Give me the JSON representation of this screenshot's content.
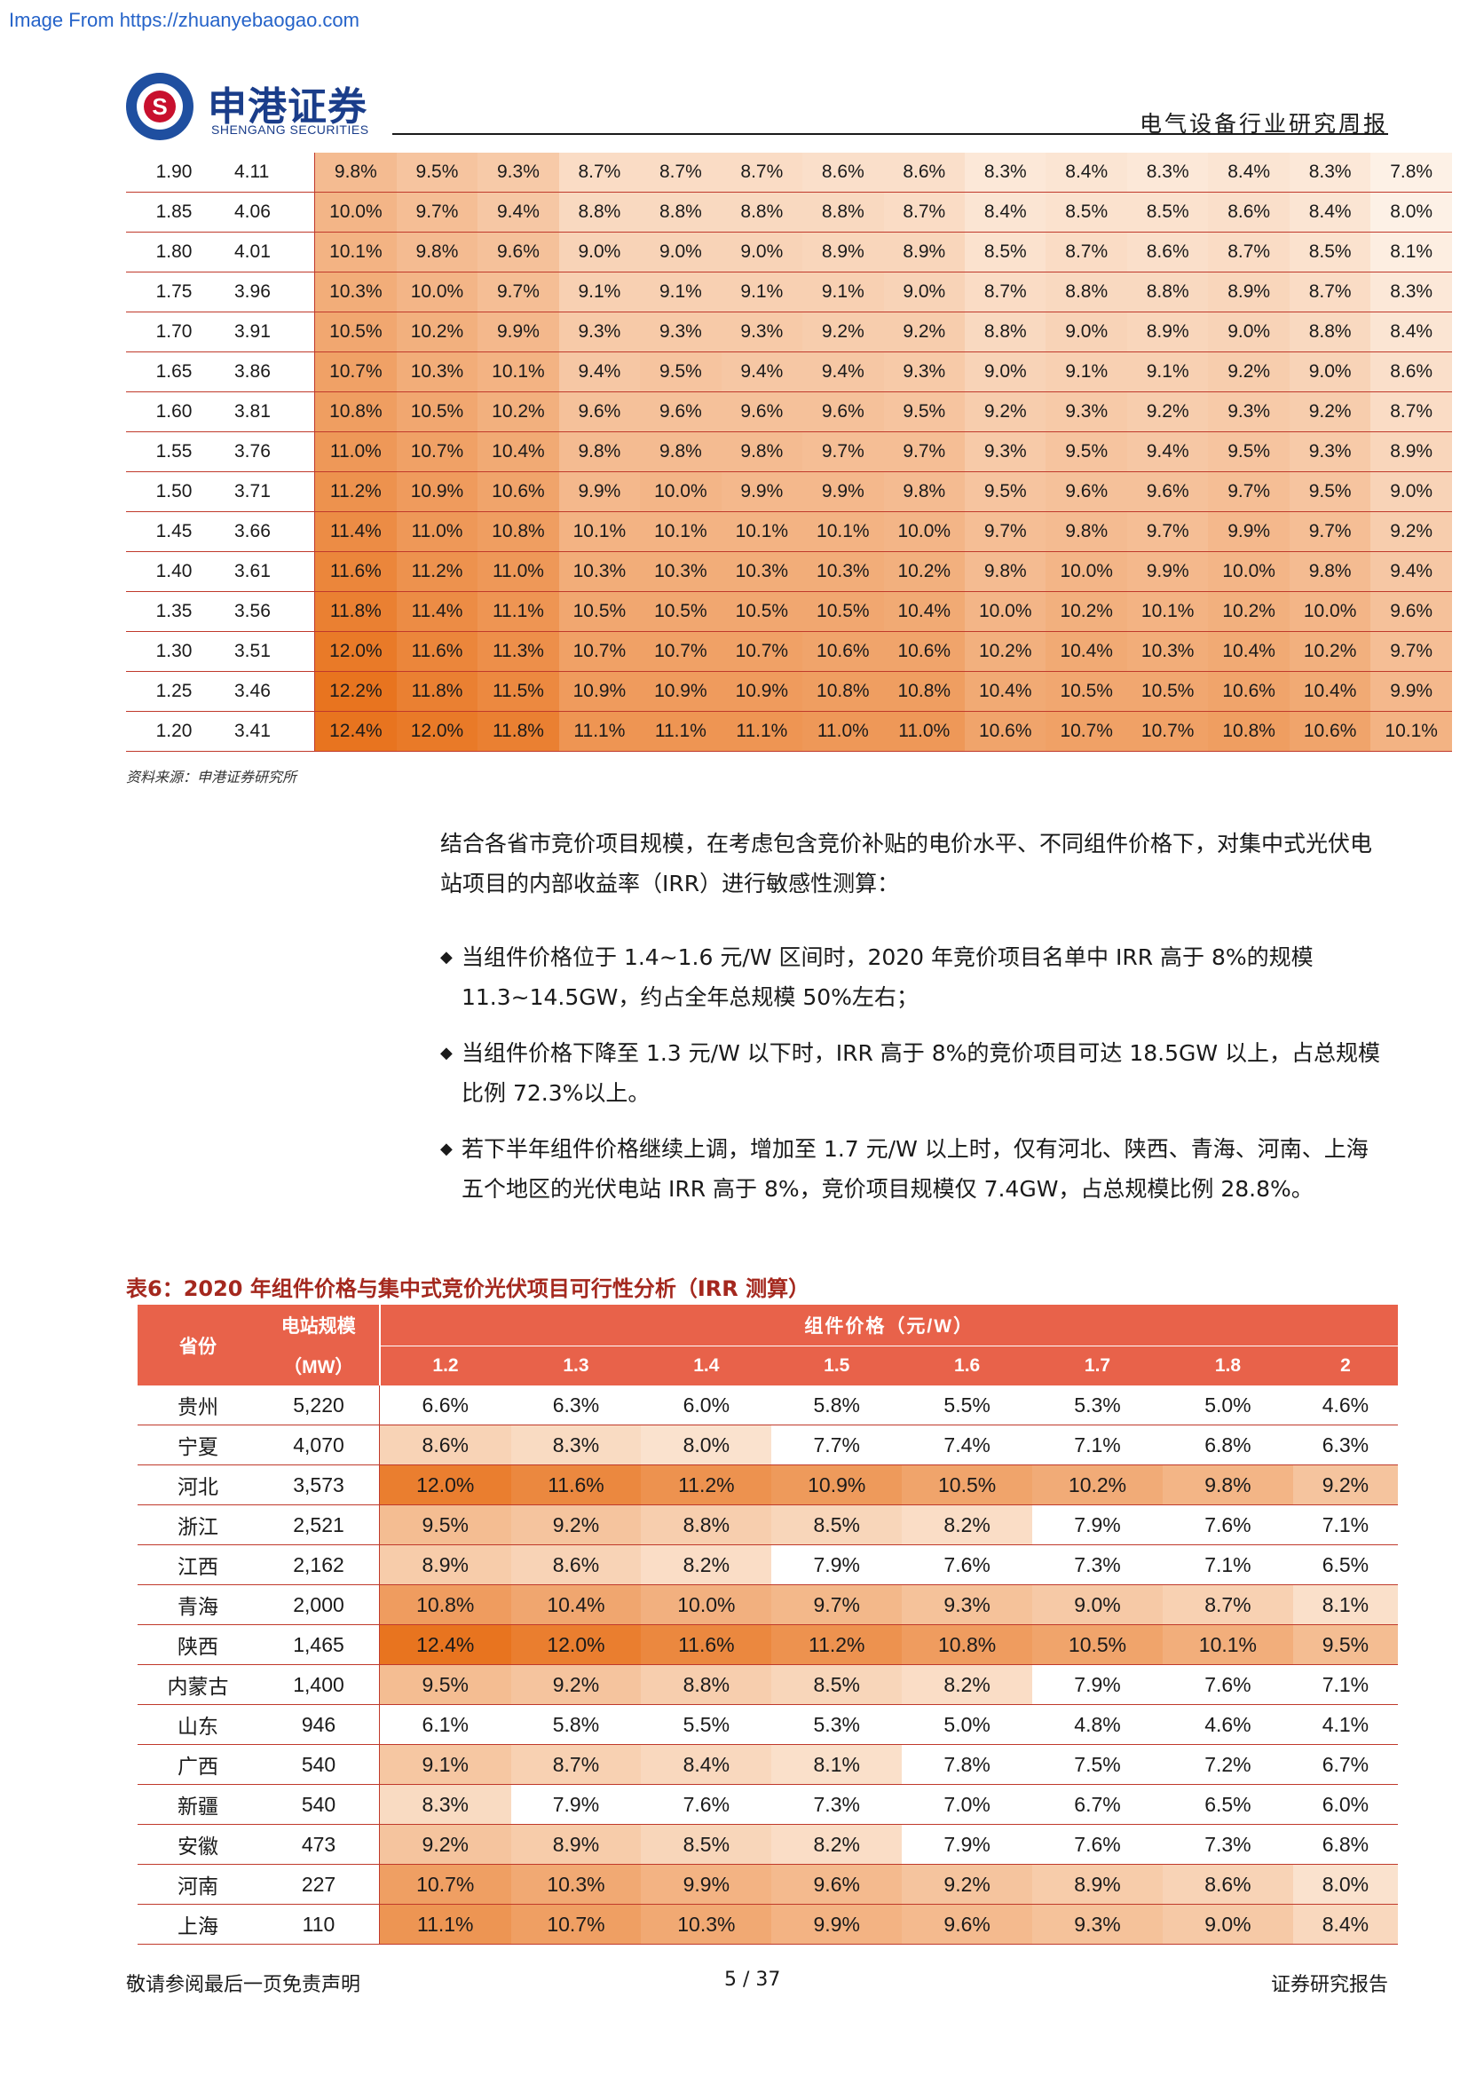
{
  "watermark": "Image From https://zhuanyebaogao.com",
  "header": {
    "logo_cn": "申港证券",
    "logo_en": "SHENGANG SECURITIES",
    "report_type": "电气设备行业研究周报"
  },
  "sensitivity_table": {
    "rows": [
      [
        "1.90",
        "4.11",
        "9.8%",
        "9.5%",
        "9.3%",
        "8.7%",
        "8.7%",
        "8.7%",
        "8.6%",
        "8.6%",
        "8.3%",
        "8.4%",
        "8.3%",
        "8.4%",
        "8.3%",
        "7.8%"
      ],
      [
        "1.85",
        "4.06",
        "10.0%",
        "9.7%",
        "9.4%",
        "8.8%",
        "8.8%",
        "8.8%",
        "8.8%",
        "8.7%",
        "8.4%",
        "8.5%",
        "8.5%",
        "8.6%",
        "8.4%",
        "8.0%"
      ],
      [
        "1.80",
        "4.01",
        "10.1%",
        "9.8%",
        "9.6%",
        "9.0%",
        "9.0%",
        "9.0%",
        "8.9%",
        "8.9%",
        "8.5%",
        "8.7%",
        "8.6%",
        "8.7%",
        "8.5%",
        "8.1%"
      ],
      [
        "1.75",
        "3.96",
        "10.3%",
        "10.0%",
        "9.7%",
        "9.1%",
        "9.1%",
        "9.1%",
        "9.1%",
        "9.0%",
        "8.7%",
        "8.8%",
        "8.8%",
        "8.9%",
        "8.7%",
        "8.3%"
      ],
      [
        "1.70",
        "3.91",
        "10.5%",
        "10.2%",
        "9.9%",
        "9.3%",
        "9.3%",
        "9.3%",
        "9.2%",
        "9.2%",
        "8.8%",
        "9.0%",
        "8.9%",
        "9.0%",
        "8.8%",
        "8.4%"
      ],
      [
        "1.65",
        "3.86",
        "10.7%",
        "10.3%",
        "10.1%",
        "9.4%",
        "9.5%",
        "9.4%",
        "9.4%",
        "9.3%",
        "9.0%",
        "9.1%",
        "9.1%",
        "9.2%",
        "9.0%",
        "8.6%"
      ],
      [
        "1.60",
        "3.81",
        "10.8%",
        "10.5%",
        "10.2%",
        "9.6%",
        "9.6%",
        "9.6%",
        "9.6%",
        "9.5%",
        "9.2%",
        "9.3%",
        "9.2%",
        "9.3%",
        "9.2%",
        "8.7%"
      ],
      [
        "1.55",
        "3.76",
        "11.0%",
        "10.7%",
        "10.4%",
        "9.8%",
        "9.8%",
        "9.8%",
        "9.7%",
        "9.7%",
        "9.3%",
        "9.5%",
        "9.4%",
        "9.5%",
        "9.3%",
        "8.9%"
      ],
      [
        "1.50",
        "3.71",
        "11.2%",
        "10.9%",
        "10.6%",
        "9.9%",
        "10.0%",
        "9.9%",
        "9.9%",
        "9.8%",
        "9.5%",
        "9.6%",
        "9.6%",
        "9.7%",
        "9.5%",
        "9.0%"
      ],
      [
        "1.45",
        "3.66",
        "11.4%",
        "11.0%",
        "10.8%",
        "10.1%",
        "10.1%",
        "10.1%",
        "10.1%",
        "10.0%",
        "9.7%",
        "9.8%",
        "9.7%",
        "9.9%",
        "9.7%",
        "9.2%"
      ],
      [
        "1.40",
        "3.61",
        "11.6%",
        "11.2%",
        "11.0%",
        "10.3%",
        "10.3%",
        "10.3%",
        "10.3%",
        "10.2%",
        "9.8%",
        "10.0%",
        "9.9%",
        "10.0%",
        "9.8%",
        "9.4%"
      ],
      [
        "1.35",
        "3.56",
        "11.8%",
        "11.4%",
        "11.1%",
        "10.5%",
        "10.5%",
        "10.5%",
        "10.5%",
        "10.4%",
        "10.0%",
        "10.2%",
        "10.1%",
        "10.2%",
        "10.0%",
        "9.6%"
      ],
      [
        "1.30",
        "3.51",
        "12.0%",
        "11.6%",
        "11.3%",
        "10.7%",
        "10.7%",
        "10.7%",
        "10.6%",
        "10.6%",
        "10.2%",
        "10.4%",
        "10.3%",
        "10.4%",
        "10.2%",
        "9.7%"
      ],
      [
        "1.25",
        "3.46",
        "12.2%",
        "11.8%",
        "11.5%",
        "10.9%",
        "10.9%",
        "10.9%",
        "10.8%",
        "10.8%",
        "10.4%",
        "10.5%",
        "10.5%",
        "10.6%",
        "10.4%",
        "9.9%"
      ],
      [
        "1.20",
        "3.41",
        "12.4%",
        "12.0%",
        "11.8%",
        "11.1%",
        "11.1%",
        "11.1%",
        "11.0%",
        "11.0%",
        "10.6%",
        "10.7%",
        "10.7%",
        "10.8%",
        "10.6%",
        "10.1%"
      ]
    ],
    "source": "资料来源：申港证券研究所"
  },
  "body": {
    "intro": "结合各省市竞价项目规模，在考虑包含竞价补贴的电价水平、不同组件价格下，对集中式光伏电站项目的内部收益率（IRR）进行敏感性测算：",
    "bullet_mark": "◆",
    "bullets": [
      "当组件价格位于 1.4~1.6 元/W 区间时，2020 年竞价项目名单中 IRR 高于 8%的规模 11.3~14.5GW，约占全年总规模 50%左右；",
      "当组件价格下降至 1.3 元/W 以下时，IRR 高于 8%的竞价项目可达 18.5GW 以上，占总规模比例 72.3%以上。",
      "若下半年组件价格继续上调，增加至 1.7 元/W 以上时，仅有河北、陕西、青海、河南、上海五个地区的光伏电站 IRR 高于 8%，竞价项目规模仅 7.4GW，占总规模比例 28.8%。"
    ]
  },
  "irr_table": {
    "title": "表6：2020 年组件价格与集中式竞价光伏项目可行性分析（IRR 测算）",
    "header_province": "省份",
    "header_scale": "电站规模",
    "header_scale_unit": "（MW）",
    "header_price": "组件价格（元/W）",
    "prices": [
      "1.2",
      "1.3",
      "1.4",
      "1.5",
      "1.6",
      "1.7",
      "1.8",
      "2"
    ],
    "rows": [
      {
        "province": "贵州",
        "scale": "5,220",
        "values": [
          "6.6%",
          "6.3%",
          "6.0%",
          "5.8%",
          "5.5%",
          "5.3%",
          "5.0%",
          "4.6%"
        ]
      },
      {
        "province": "宁夏",
        "scale": "4,070",
        "values": [
          "8.6%",
          "8.3%",
          "8.0%",
          "7.7%",
          "7.4%",
          "7.1%",
          "6.8%",
          "6.3%"
        ]
      },
      {
        "province": "河北",
        "scale": "3,573",
        "values": [
          "12.0%",
          "11.6%",
          "11.2%",
          "10.9%",
          "10.5%",
          "10.2%",
          "9.8%",
          "9.2%"
        ]
      },
      {
        "province": "浙江",
        "scale": "2,521",
        "values": [
          "9.5%",
          "9.2%",
          "8.8%",
          "8.5%",
          "8.2%",
          "7.9%",
          "7.6%",
          "7.1%"
        ]
      },
      {
        "province": "江西",
        "scale": "2,162",
        "values": [
          "8.9%",
          "8.6%",
          "8.2%",
          "7.9%",
          "7.6%",
          "7.3%",
          "7.1%",
          "6.5%"
        ]
      },
      {
        "province": "青海",
        "scale": "2,000",
        "values": [
          "10.8%",
          "10.4%",
          "10.0%",
          "9.7%",
          "9.3%",
          "9.0%",
          "8.7%",
          "8.1%"
        ]
      },
      {
        "province": "陕西",
        "scale": "1,465",
        "values": [
          "12.4%",
          "12.0%",
          "11.6%",
          "11.2%",
          "10.8%",
          "10.5%",
          "10.1%",
          "9.5%"
        ]
      },
      {
        "province": "内蒙古",
        "scale": "1,400",
        "values": [
          "9.5%",
          "9.2%",
          "8.8%",
          "8.5%",
          "8.2%",
          "7.9%",
          "7.6%",
          "7.1%"
        ]
      },
      {
        "province": "山东",
        "scale": "946",
        "values": [
          "6.1%",
          "5.8%",
          "5.5%",
          "5.3%",
          "5.0%",
          "4.8%",
          "4.6%",
          "4.1%"
        ]
      },
      {
        "province": "广西",
        "scale": "540",
        "values": [
          "9.1%",
          "8.7%",
          "8.4%",
          "8.1%",
          "7.8%",
          "7.5%",
          "7.2%",
          "6.7%"
        ]
      },
      {
        "province": "新疆",
        "scale": "540",
        "values": [
          "8.3%",
          "7.9%",
          "7.6%",
          "7.3%",
          "7.0%",
          "6.7%",
          "6.5%",
          "6.0%"
        ]
      },
      {
        "province": "安徽",
        "scale": "473",
        "values": [
          "9.2%",
          "8.9%",
          "8.5%",
          "8.2%",
          "7.9%",
          "7.6%",
          "7.3%",
          "6.8%"
        ]
      },
      {
        "province": "河南",
        "scale": "227",
        "values": [
          "10.7%",
          "10.3%",
          "9.9%",
          "9.6%",
          "9.2%",
          "8.9%",
          "8.6%",
          "8.0%"
        ]
      },
      {
        "province": "上海",
        "scale": "110",
        "values": [
          "11.1%",
          "10.7%",
          "10.3%",
          "9.9%",
          "9.6%",
          "9.3%",
          "9.0%",
          "8.4%"
        ]
      }
    ]
  },
  "footer": {
    "disclaimer": "敬请参阅最后一页免责声明",
    "page": "5 / 37",
    "type": "证券研究报告"
  },
  "colors": {
    "header_bg": "#e8624a",
    "rule": "#c0392b",
    "title": "#a4281e",
    "heat_max": "#e8741f",
    "heat_min": "#fdf1e6"
  }
}
